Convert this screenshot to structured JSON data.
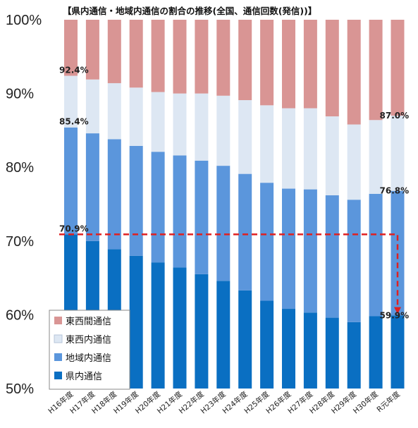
{
  "chart_data": {
    "type": "bar",
    "stacked": true,
    "title": "【県内通信・地域内通信の割合の推移(全国、通信回数(発信))】",
    "categories": [
      "H16年度",
      "H17年度",
      "H18年度",
      "H19年度",
      "H20年度",
      "H21年度",
      "H22年度",
      "H23年度",
      "H24年度",
      "H25年度",
      "H26年度",
      "H27年度",
      "H28年度",
      "H29年度",
      "H30年度",
      "R元年度"
    ],
    "ylim": [
      50,
      100
    ],
    "yticks": [
      "50%",
      "60%",
      "70%",
      "80%",
      "90%",
      "100%"
    ],
    "series": [
      {
        "name": "県内通信",
        "color": "#0a6fc2",
        "cumulative": [
          70.9,
          70.0,
          68.9,
          68.0,
          67.1,
          66.4,
          65.5,
          64.6,
          63.3,
          61.9,
          60.8,
          60.3,
          59.6,
          59.0,
          59.8,
          59.9
        ]
      },
      {
        "name": "地域内通信",
        "color": "#5b96dc",
        "cumulative": [
          85.4,
          84.6,
          83.8,
          82.9,
          82.1,
          81.6,
          80.9,
          80.2,
          79.1,
          77.9,
          77.1,
          77.0,
          76.2,
          75.6,
          76.4,
          76.8
        ]
      },
      {
        "name": "東西内通信",
        "color": "#dde7f3",
        "cumulative": [
          92.4,
          91.9,
          91.4,
          90.8,
          90.2,
          90.0,
          90.0,
          89.7,
          89.1,
          88.4,
          88.0,
          88.0,
          86.9,
          85.8,
          86.4,
          87.0
        ]
      },
      {
        "name": "東西間通信",
        "color": "#d99594",
        "cumulative": [
          100,
          100,
          100,
          100,
          100,
          100,
          100,
          100,
          100,
          100,
          100,
          100,
          100,
          100,
          100,
          100
        ]
      }
    ],
    "annotations": [
      {
        "text": "92.4%",
        "category": "H16年度",
        "value": 92.4
      },
      {
        "text": "85.4%",
        "category": "H16年度",
        "value": 85.4
      },
      {
        "text": "70.9%",
        "category": "H16年度",
        "value": 70.9
      },
      {
        "text": "87.0%",
        "category": "R元年度",
        "value": 87.0
      },
      {
        "text": "76.8%",
        "category": "R元年度",
        "value": 76.8
      },
      {
        "text": "59.9%",
        "category": "R元年度",
        "value": 59.9
      }
    ],
    "reference_line": {
      "from_value": 70.9,
      "to_value": 59.9,
      "color": "#e02020",
      "style": "dashed"
    },
    "legend": {
      "position": "bottom-left",
      "order": [
        "東西間通信",
        "東西内通信",
        "地域内通信",
        "県内通信"
      ]
    }
  }
}
